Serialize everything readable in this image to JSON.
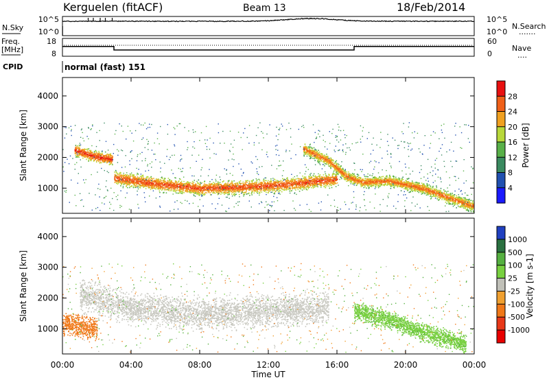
{
  "header": {
    "station": "Kerguelen (fitACF)",
    "beam": "Beam 13",
    "date": "18/Feb/2014"
  },
  "noise_panel": {
    "left_label": "N.Sky",
    "left_ticks": [
      "10^5",
      "10^0"
    ],
    "right_ticks": [
      "10^5",
      "10^0"
    ],
    "right_label": "N.Search",
    "right_legend_line": "......."
  },
  "freq_panel": {
    "left_label_1": "Freq.",
    "left_label_2": "[MHz]",
    "left_ticks": [
      "18",
      "8"
    ],
    "right_ticks": [
      "60",
      "0"
    ],
    "right_label": "Nave",
    "right_legend_line": "....",
    "freq_steps": [
      {
        "t_start": 0,
        "t_end": 3,
        "mhz": 13.5
      },
      {
        "t_start": 3,
        "t_end": 17,
        "mhz": 11.5
      },
      {
        "t_start": 17,
        "t_end": 24,
        "mhz": 13.5
      }
    ]
  },
  "cpid": {
    "label": "CPID",
    "value": "normal (fast) 151"
  },
  "x_axis": {
    "label": "Time UT",
    "ticks": [
      "00:00",
      "04:00",
      "08:00",
      "12:00",
      "16:00",
      "20:00",
      "00:00"
    ],
    "range_hours": [
      0,
      24
    ]
  },
  "power_panel": {
    "ylabel": "Slant Range [km]",
    "yticks": [
      "1000",
      "2000",
      "3000",
      "4000"
    ],
    "colorbar_title": "Power [dB]",
    "colorbar_ticks": [
      "4",
      "8",
      "12",
      "16",
      "20",
      "24",
      "28"
    ]
  },
  "velocity_panel": {
    "ylabel": "Slant Range [km]",
    "yticks": [
      "1000",
      "2000",
      "3000",
      "4000"
    ],
    "colorbar_title": "Velocity [m s-1]",
    "colorbar_ticks": [
      "1000",
      "500",
      "100",
      "25",
      "-25",
      "-100",
      "-500",
      "-1000"
    ]
  },
  "colors": {
    "power_scale": [
      "#1a1aff",
      "#2050b0",
      "#3a8a60",
      "#58b048",
      "#b8d83a",
      "#f0a020",
      "#f06018",
      "#e81010"
    ],
    "velocity_scale": [
      "#2040c0",
      "#2a7040",
      "#55b040",
      "#78d040",
      "#c0c0b8",
      "#f0a030",
      "#f07818",
      "#e83818",
      "#e80000"
    ],
    "ground_scatter": "#c8c8c0"
  },
  "chart_data": {
    "type": "heatmap",
    "x_unit": "hours UT",
    "y_unit": "slant range km",
    "xlim": [
      0,
      24
    ],
    "ylim": [
      180,
      4600
    ],
    "power_features": [
      {
        "name": "band_A",
        "t": [
          0.7,
          1.5,
          2.2,
          2.9
        ],
        "range": [
          2250,
          2100,
          2000,
          1950
        ],
        "width_km": 250,
        "power_db": 27
      },
      {
        "name": "band_B",
        "t": [
          3.0,
          5.0,
          8.0,
          11.0,
          13.5,
          15.0,
          16.0
        ],
        "range": [
          1350,
          1180,
          1000,
          1050,
          1150,
          1250,
          1300
        ],
        "width_km": 300,
        "power_db": 26
      },
      {
        "name": "band_C",
        "t": [
          14.0,
          15.5,
          16.5,
          17.5,
          19.0,
          21.0,
          22.5,
          24.0
        ],
        "range": [
          2300,
          1900,
          1400,
          1200,
          1250,
          1000,
          700,
          400
        ],
        "width_km": 250,
        "power_db": 24
      }
    ],
    "velocity_features": [
      {
        "name": "ground_scatter",
        "t": [
          1.0,
          4.0,
          8.0,
          12.0,
          15.5
        ],
        "range": [
          2100,
          1700,
          1500,
          1600,
          1700
        ],
        "width_km": 700,
        "velocity_ms": 0
      },
      {
        "name": "negative_patch",
        "t": [
          0.0,
          1.0,
          2.0
        ],
        "range": [
          1200,
          1100,
          1000
        ],
        "width_km": 500,
        "velocity_ms": -300
      },
      {
        "name": "late_scatter",
        "t": [
          17.0,
          19.0,
          21.0,
          23.5
        ],
        "range": [
          1600,
          1300,
          900,
          500
        ],
        "width_km": 400,
        "velocity_ms": 80
      }
    ]
  }
}
